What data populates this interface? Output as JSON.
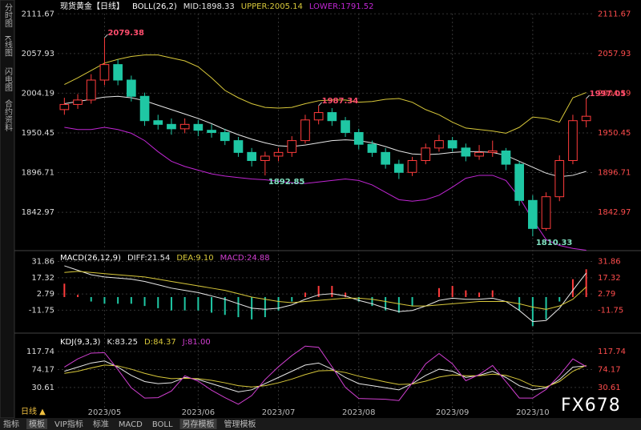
{
  "ui": {
    "sidebar": [
      "分时图",
      "K线图",
      "闪电图",
      "合约资料"
    ],
    "period": "日线 ▲",
    "tabs": [
      "指标",
      "模板",
      "VIP指标",
      "标准",
      "MACD",
      "BOLL",
      "另存模板",
      "管理模板"
    ],
    "watermark": "FX678"
  },
  "chart_data": [
    {
      "type": "candlestick",
      "title": "现货黄金【日线】",
      "readouts": [
        "BOLL(26,2)",
        "MID:1898.33",
        "UPPER:2005.14",
        "LOWER:1791.52"
      ],
      "categories": [
        null,
        null,
        null,
        "2023/05",
        null,
        null,
        null,
        null,
        null,
        null,
        "2023/06",
        null,
        null,
        null,
        null,
        null,
        "2023/07",
        null,
        null,
        null,
        null,
        null,
        "2023/08",
        null,
        null,
        null,
        null,
        null,
        null,
        "2023/09",
        null,
        null,
        null,
        null,
        null,
        "2023/10",
        null,
        null,
        null,
        null
      ],
      "open": [
        1982,
        1989,
        1995,
        2022,
        2043,
        2022,
        2000,
        1967,
        1962,
        1956,
        1962,
        1954,
        1951,
        1940,
        1924,
        1913,
        1919,
        1924,
        1940,
        1968,
        1978,
        1967,
        1951,
        1935,
        1924,
        1908,
        1897,
        1913,
        1930,
        1940,
        1930,
        1919,
        1924,
        1926,
        1908,
        1859,
        1821,
        1864,
        1913,
        1967
      ],
      "high": [
        1998,
        2003,
        2030,
        2079.38,
        2050,
        2028,
        2005,
        1975,
        1970,
        1970,
        1968,
        1962,
        1956,
        1945,
        1930,
        1925,
        1930,
        1946,
        1975,
        1987.34,
        1984,
        1972,
        1956,
        1940,
        1930,
        1914,
        1918,
        1936,
        1948,
        1945,
        1936,
        1934,
        1940,
        1930,
        1912,
        1866,
        1870,
        1920,
        1975,
        1997.05
      ],
      "low": [
        1975,
        1983,
        1990,
        2015,
        2015,
        1993,
        1960,
        1955,
        1948,
        1950,
        1946,
        1944,
        1934,
        1918,
        1905,
        1892.85,
        1912,
        1918,
        1936,
        1962,
        1960,
        1945,
        1928,
        1918,
        1902,
        1888,
        1892,
        1908,
        1925,
        1925,
        1912,
        1914,
        1918,
        1900,
        1852,
        1810.33,
        1818,
        1858,
        1908,
        1958
      ],
      "close": [
        1989,
        1995,
        2022,
        2043,
        2022,
        2000,
        1967,
        1962,
        1956,
        1962,
        1954,
        1951,
        1940,
        1924,
        1913,
        1919,
        1924,
        1940,
        1968,
        1978,
        1967,
        1951,
        1935,
        1924,
        1908,
        1897,
        1913,
        1930,
        1940,
        1930,
        1919,
        1924,
        1926,
        1908,
        1859,
        1821,
        1864,
        1913,
        1967,
        1973
      ],
      "high_labels": [
        null,
        null,
        null,
        "2079.38",
        null,
        null,
        null,
        null,
        null,
        null,
        null,
        null,
        null,
        null,
        null,
        null,
        null,
        null,
        null,
        "1987.34",
        null,
        null,
        null,
        null,
        null,
        null,
        null,
        null,
        null,
        null,
        null,
        null,
        null,
        null,
        null,
        null,
        null,
        null,
        null,
        "1997.05"
      ],
      "low_labels": [
        null,
        null,
        null,
        null,
        null,
        null,
        null,
        null,
        null,
        null,
        null,
        null,
        null,
        null,
        null,
        "1892.85",
        null,
        null,
        null,
        null,
        null,
        null,
        null,
        null,
        null,
        null,
        null,
        null,
        null,
        null,
        null,
        null,
        null,
        null,
        null,
        "1810.33",
        null,
        null,
        null,
        null
      ],
      "up_color": "#ff3c3c",
      "down_color": "#1fc7a4",
      "series": [
        {
          "color": "#d8c83a",
          "values": [
            2016,
            2025,
            2035,
            2045,
            2050,
            2054,
            2056,
            2056,
            2052,
            2048,
            2040,
            2025,
            2008,
            1998,
            1990,
            1985,
            1984,
            1985,
            1990,
            1994,
            1995,
            1995,
            1992,
            1993,
            1996,
            1997,
            1992,
            1982,
            1975,
            1965,
            1957,
            1955,
            1953,
            1950,
            1958,
            1972,
            1970,
            1965,
            1998,
            2005.14
          ]
        },
        {
          "color": "#e8e8e8",
          "values": [
            1990,
            1993,
            1996,
            1999,
            2000,
            1998,
            1994,
            1988,
            1982,
            1976,
            1970,
            1963,
            1955,
            1948,
            1942,
            1937,
            1933,
            1932,
            1934,
            1937,
            1940,
            1941,
            1940,
            1937,
            1932,
            1926,
            1922,
            1921,
            1922,
            1924,
            1925,
            1925,
            1924,
            1920,
            1912,
            1904,
            1896,
            1891,
            1893,
            1898.33
          ]
        },
        {
          "color": "#c026d3",
          "values": [
            1958,
            1955,
            1955,
            1958,
            1955,
            1950,
            1940,
            1925,
            1912,
            1905,
            1900,
            1895,
            1892,
            1890,
            1888,
            1887,
            1885,
            1883,
            1882,
            1884,
            1886,
            1888,
            1886,
            1880,
            1870,
            1860,
            1858,
            1860,
            1866,
            1877,
            1889,
            1893,
            1893,
            1886,
            1863,
            1833,
            1806,
            1798,
            1794,
            1791.52
          ]
        }
      ],
      "ylim": [
        1791,
        2112
      ],
      "yticks": [
        2111.67,
        2057.93,
        2004.19,
        1950.45,
        1896.71,
        1842.97
      ],
      "grid": true
    },
    {
      "type": "macd",
      "readouts": [
        "MACD(26,12,9)",
        "DIFF:21.54",
        "DEA:9.10",
        "MACD:24.88"
      ],
      "values": [
        12,
        2,
        -4,
        -6,
        -6,
        -6,
        -8,
        -10,
        -12,
        -12,
        -12,
        -14,
        -16,
        -18,
        -20,
        -18,
        -12,
        -4,
        4,
        10,
        10,
        4,
        -4,
        -8,
        -12,
        -14,
        -8,
        0,
        8,
        10,
        6,
        4,
        6,
        0,
        -12,
        -26,
        -20,
        -4,
        16,
        24.88
      ],
      "up_color": "#ff3c3c",
      "down_color": "#1fc7a4",
      "series": [
        {
          "color": "#e8e8e8",
          "values": [
            28,
            24,
            20,
            18,
            17,
            16,
            14,
            11,
            8,
            6,
            4,
            1,
            -2,
            -6,
            -10,
            -11,
            -10,
            -7,
            -2,
            2,
            3,
            1,
            -3,
            -6,
            -10,
            -13,
            -12,
            -8,
            -3,
            -1,
            -2,
            -2,
            -1,
            -4,
            -12,
            -22,
            -21,
            -10,
            6,
            21.54
          ]
        },
        {
          "color": "#d8c83a",
          "values": [
            22,
            23,
            22,
            21,
            20,
            19,
            18,
            16,
            14,
            12,
            10,
            8,
            6,
            3,
            0,
            -2,
            -4,
            -5,
            -4,
            -3,
            -2,
            -1,
            -1,
            -2,
            -4,
            -6,
            -8,
            -8,
            -7,
            -6,
            -5,
            -4,
            -4,
            -4,
            -6,
            -9,
            -11,
            -8,
            -2,
            9.1
          ]
        }
      ],
      "ylim": [
        -28,
        38
      ],
      "yticks": [
        31.86,
        17.32,
        2.79,
        -11.75
      ],
      "grid": true
    },
    {
      "type": "line",
      "readouts": [
        "KDJ(9,3,3)",
        "K:83.25",
        "D:84.37",
        "J:81.00"
      ],
      "series": [
        {
          "color": "#e8e8e8",
          "values": [
            70,
            80,
            90,
            95,
            80,
            60,
            45,
            40,
            42,
            55,
            50,
            40,
            30,
            20,
            25,
            40,
            55,
            70,
            85,
            90,
            75,
            55,
            40,
            35,
            30,
            25,
            40,
            60,
            75,
            70,
            55,
            60,
            70,
            55,
            35,
            25,
            30,
            50,
            80,
            83.25
          ]
        },
        {
          "color": "#d8c83a",
          "values": [
            65,
            70,
            78,
            85,
            83,
            75,
            65,
            57,
            52,
            53,
            52,
            48,
            42,
            35,
            32,
            35,
            42,
            51,
            62,
            71,
            72,
            67,
            58,
            51,
            44,
            38,
            39,
            46,
            56,
            61,
            59,
            59,
            63,
            60,
            50,
            35,
            32,
            45,
            70,
            84.37
          ]
        },
        {
          "color": "#d13fd1",
          "values": [
            80,
            100,
            114,
            115,
            74,
            30,
            5,
            6,
            22,
            59,
            46,
            24,
            6,
            -10,
            11,
            50,
            81,
            108,
            131,
            128,
            81,
            31,
            4,
            3,
            2,
            -1,
            42,
            88,
            113,
            88,
            47,
            62,
            84,
            45,
            5,
            5,
            26,
            60,
            100,
            81
          ]
        }
      ],
      "ylim": [
        -20,
        145
      ],
      "yticks": [
        117.74,
        74.17,
        30.61
      ],
      "grid": true
    }
  ]
}
